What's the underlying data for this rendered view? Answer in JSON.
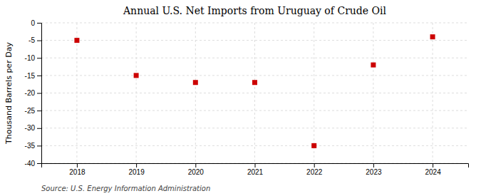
{
  "chart_data": {
    "type": "scatter",
    "title": "Annual U.S. Net Imports from Uruguay of Crude Oil",
    "ylabel": "Thousand Barrels per Day",
    "annotations": [
      "Source: U.S. Energy Information Administration"
    ],
    "x": [
      2018,
      2019,
      2020,
      2021,
      2022,
      2023,
      2024
    ],
    "values": [
      -5,
      -15,
      -17,
      -17,
      -35,
      -12,
      -4
    ],
    "xlim": [
      2017.4,
      2024.6
    ],
    "xticks": [
      2018,
      2019,
      2020,
      2021,
      2022,
      2023,
      2024
    ],
    "ylim": [
      -40,
      0
    ],
    "yticks": [
      0,
      -5,
      -10,
      -15,
      -20,
      -25,
      -30,
      -35,
      -40
    ],
    "color": "#cc0000",
    "marker": "square",
    "grid": true
  }
}
